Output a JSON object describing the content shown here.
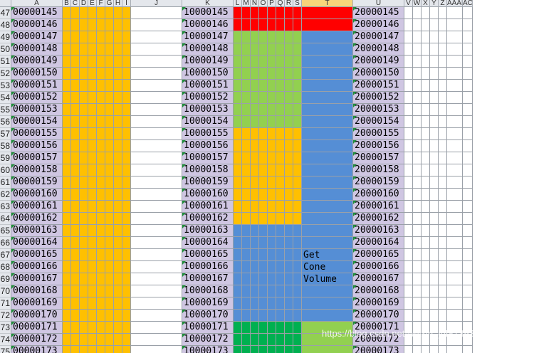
{
  "columns": [
    "A",
    "B",
    "C",
    "D",
    "E",
    "F",
    "G",
    "H",
    "I",
    "J",
    "K",
    "L",
    "M",
    "N",
    "O",
    "P",
    "Q",
    "R",
    "S",
    "T",
    "U",
    "V",
    "W",
    "X",
    "Y",
    "Z",
    "AAAB",
    "AC"
  ],
  "rows": [
    {
      "num": "47",
      "a": "00000145",
      "k": "10000145",
      "u": "20000145"
    },
    {
      "num": "48",
      "a": "00000146",
      "k": "10000146",
      "u": "20000146"
    },
    {
      "num": "49",
      "a": "00000147",
      "k": "10000147",
      "u": "20000147"
    },
    {
      "num": "50",
      "a": "00000148",
      "k": "10000148",
      "u": "20000148"
    },
    {
      "num": "51",
      "a": "00000149",
      "k": "10000149",
      "u": "20000149"
    },
    {
      "num": "52",
      "a": "00000150",
      "k": "10000150",
      "u": "20000150"
    },
    {
      "num": "53",
      "a": "00000151",
      "k": "10000151",
      "u": "20000151"
    },
    {
      "num": "54",
      "a": "00000152",
      "k": "10000152",
      "u": "20000152"
    },
    {
      "num": "55",
      "a": "00000153",
      "k": "10000153",
      "u": "20000153"
    },
    {
      "num": "56",
      "a": "00000154",
      "k": "10000154",
      "u": "20000154"
    },
    {
      "num": "57",
      "a": "00000155",
      "k": "10000155",
      "u": "20000155"
    },
    {
      "num": "58",
      "a": "00000156",
      "k": "10000156",
      "u": "20000156"
    },
    {
      "num": "59",
      "a": "00000157",
      "k": "10000157",
      "u": "20000157"
    },
    {
      "num": "60",
      "a": "00000158",
      "k": "10000158",
      "u": "20000158"
    },
    {
      "num": "61",
      "a": "00000159",
      "k": "10000159",
      "u": "20000159"
    },
    {
      "num": "62",
      "a": "00000160",
      "k": "10000160",
      "u": "20000160"
    },
    {
      "num": "63",
      "a": "00000161",
      "k": "10000161",
      "u": "20000161"
    },
    {
      "num": "64",
      "a": "00000162",
      "k": "10000162",
      "u": "20000162"
    },
    {
      "num": "65",
      "a": "00000163",
      "k": "10000163",
      "u": "20000163"
    },
    {
      "num": "66",
      "a": "00000164",
      "k": "10000164",
      "u": "20000164"
    },
    {
      "num": "67",
      "a": "00000165",
      "k": "10000165",
      "u": "20000165"
    },
    {
      "num": "68",
      "a": "00000166",
      "k": "10000166",
      "u": "20000166"
    },
    {
      "num": "69",
      "a": "00000167",
      "k": "10000167",
      "u": "20000167"
    },
    {
      "num": "70",
      "a": "00000168",
      "k": "10000168",
      "u": "20000168"
    },
    {
      "num": "71",
      "a": "00000169",
      "k": "10000169",
      "u": "20000169"
    },
    {
      "num": "72",
      "a": "00000170",
      "k": "10000170",
      "u": "20000170"
    },
    {
      "num": "73",
      "a": "00000171",
      "k": "10000171",
      "u": "20000171"
    },
    {
      "num": "74",
      "a": "00000172",
      "k": "10000172",
      "u": "20000172"
    },
    {
      "num": "75",
      "a": "00000173",
      "k": "10000173",
      "u": "20000173"
    }
  ],
  "annotation": [
    "Get",
    "Cone",
    "Volume"
  ],
  "watermark": "https://blog.csdn.net/weixin_44813932",
  "colors": {
    "grid": "#9aa0a8",
    "header_bg": "#e4e7ec",
    "selected_header_bg": "#f7d57a",
    "lavender_cell": "#cfc6e2",
    "orange_fill": "#ffc000",
    "red_fill": "#ff0000",
    "light_green_fill": "#92d050",
    "blue_fill": "#558ed5",
    "dark_green_fill": "#00b050",
    "error_marker": "#1f8f3a"
  }
}
